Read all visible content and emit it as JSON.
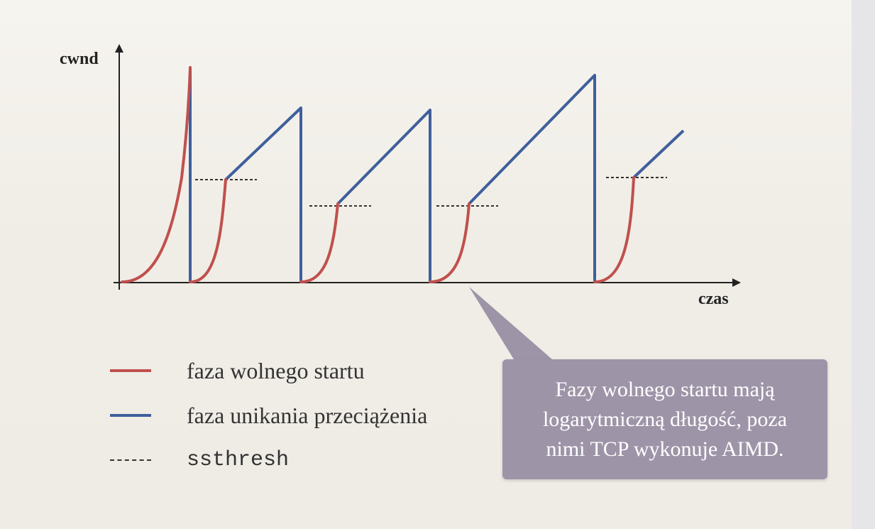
{
  "diagram": {
    "y_axis_label": "cwnd",
    "x_axis_label": "czas",
    "colors": {
      "slow_start": "#c0504d",
      "congestion_avoidance": "#3f5f9c",
      "ssthresh": "#333333"
    }
  },
  "legend": {
    "items": [
      {
        "label": "faza wolnego startu",
        "style": "slow_start"
      },
      {
        "label": "faza unikania przeciążenia",
        "style": "congestion_avoidance"
      },
      {
        "label": "ssthresh",
        "style": "ssthresh"
      }
    ]
  },
  "callout": {
    "lines": [
      "Fazy wolnego startu mają",
      "logarytmiczną długość, poza",
      "nimi TCP wykonuje AIMD."
    ],
    "color": "#9e94a8"
  }
}
